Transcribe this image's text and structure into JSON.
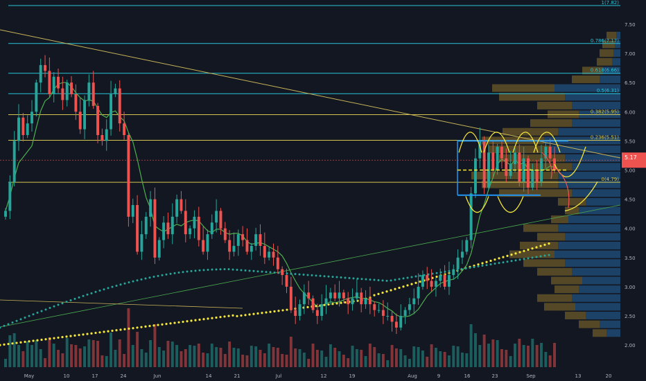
{
  "chart_data": {
    "type": "candlestick",
    "y_range": [
      1.6,
      7.85
    ],
    "x_ticks": [
      "May",
      "10",
      "17",
      "24",
      "Jun",
      "14",
      "21",
      "Jul",
      "12",
      "19",
      "Aug",
      "9",
      "16",
      "23",
      "Sep",
      "13",
      "20"
    ],
    "y_ticks": [
      "7.50",
      "7.00",
      "6.50",
      "6.00",
      "5.50",
      "5.00",
      "4.50",
      "4.00",
      "3.50",
      "3.00",
      "2.50",
      "2.00"
    ],
    "price_label": "5.17",
    "fibonacci": [
      {
        "label": "1(7.82)",
        "value": 7.82
      },
      {
        "label": "0.786(7.17)",
        "value": 7.17
      },
      {
        "label": "0.618(6.66)",
        "value": 6.66
      },
      {
        "label": "0.5(6.31)",
        "value": 6.31
      },
      {
        "label": "0.382(5.95)",
        "value": 5.95
      },
      {
        "label": "0.236(5.51)",
        "value": 5.51
      },
      {
        "label": "0(4.79)",
        "value": 4.79
      }
    ],
    "colors": {
      "up": "#26a69a",
      "down": "#ef5350",
      "fib_teal": "#26c6da",
      "fib_yellow": "#d4c550",
      "ma_yellow": "#f5e63b",
      "ma_teal": "#26a69a",
      "trend": "#c9b458",
      "volume_profile_up": "#1f4e79",
      "volume_profile_down": "#6b5a2a",
      "price_tag": "#ef5350"
    }
  }
}
